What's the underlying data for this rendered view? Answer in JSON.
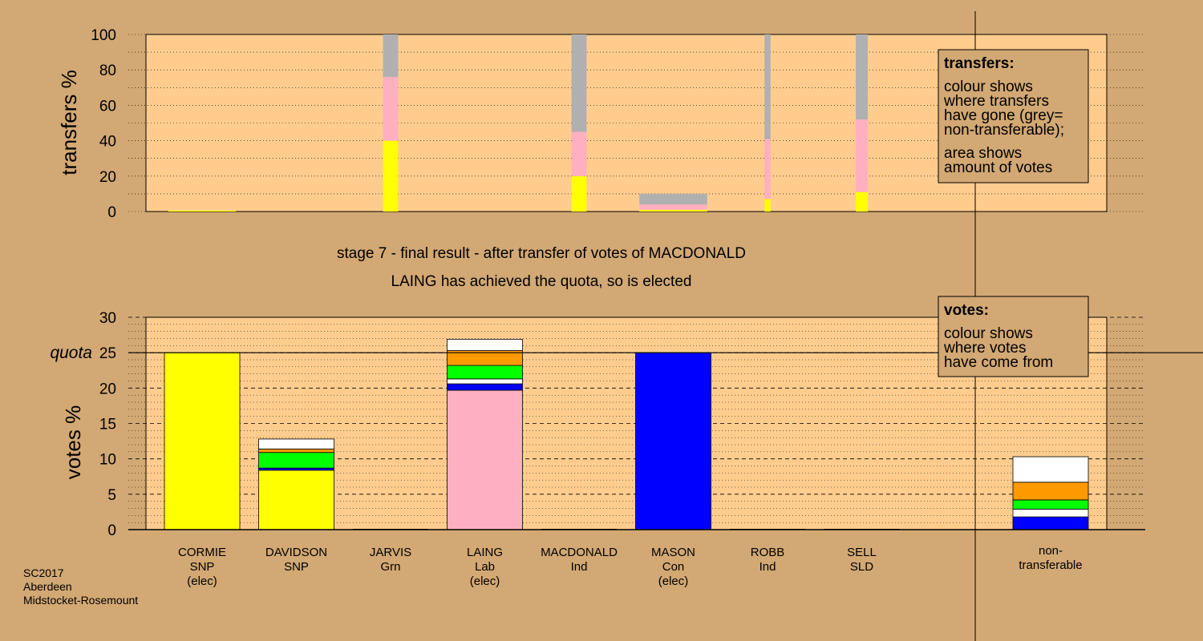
{
  "colors": {
    "background": "#d2a874",
    "plot_area": "#ffcc8e",
    "legend_box": "#d2a874",
    "SNP": "#ffff00",
    "Con": "#0000ff",
    "Lab": "#ffb0c0",
    "Grn": "#00ff00",
    "Ind": "#ff9900",
    "SLD": "#ffffff",
    "NT": "#b0b0b0"
  },
  "header": {
    "stage_text": "stage 7 - final result - after transfer of votes of MACDONALD",
    "result_text": "LAING has achieved the quota, so is elected"
  },
  "footer": {
    "line1": "SC2017",
    "line2": "Aberdeen",
    "line3": "Midstocket-Rosemount"
  },
  "legend_transfers": {
    "title": "transfers:",
    "line1": "colour shows",
    "line2": "where transfers",
    "line3": "have gone (grey=",
    "line4": "non-transferable);",
    "line5": "area shows",
    "line6": "amount of votes"
  },
  "legend_votes": {
    "title": "votes:",
    "line1": "colour shows",
    "line2": "where votes",
    "line3": "have come from"
  },
  "chart_data": [
    {
      "type": "bar",
      "stacked": true,
      "ylabel": "transfers %",
      "ylim": [
        0,
        100
      ],
      "yticks": [
        0,
        20,
        40,
        60,
        80,
        100
      ],
      "bars": [
        {
          "candidate": "CORMIE",
          "width_share": 0.9,
          "segments": [
            {
              "color": "SNP",
              "value": 0.3
            }
          ]
        },
        {
          "candidate": "JARVIS",
          "width_share": 0.2,
          "segments": [
            {
              "color": "SNP",
              "value": 40
            },
            {
              "color": "Lab",
              "value": 36
            },
            {
              "color": "NT",
              "value": 24
            }
          ]
        },
        {
          "candidate": "MACDONALD",
          "width_share": 0.2,
          "segments": [
            {
              "color": "SNP",
              "value": 20
            },
            {
              "color": "Lab",
              "value": 25
            },
            {
              "color": "NT",
              "value": 55
            }
          ]
        },
        {
          "candidate": "MASON",
          "width_share": 0.9,
          "segments": [
            {
              "color": "SNP",
              "value": 1
            },
            {
              "color": "Lab",
              "value": 3
            },
            {
              "color": "NT",
              "value": 6
            }
          ]
        },
        {
          "candidate": "ROBB",
          "width_share": 0.08,
          "segments": [
            {
              "color": "SNP",
              "value": 7
            },
            {
              "color": "Lab",
              "value": 34
            },
            {
              "color": "NT",
              "value": 59
            }
          ]
        },
        {
          "candidate": "SELL",
          "width_share": 0.16,
          "segments": [
            {
              "color": "SNP",
              "value": 11
            },
            {
              "color": "Lab",
              "value": 41
            },
            {
              "color": "NT",
              "value": 48
            }
          ]
        }
      ]
    },
    {
      "type": "bar",
      "stacked": true,
      "ylabel": "votes %",
      "ylim": [
        0,
        30
      ],
      "yticks": [
        0,
        5,
        10,
        15,
        20,
        25,
        30
      ],
      "quota": 25,
      "quota_label": "quota",
      "categories": [
        {
          "name": "CORMIE",
          "party": "SNP",
          "status": "(elec)"
        },
        {
          "name": "DAVIDSON",
          "party": "SNP",
          "status": ""
        },
        {
          "name": "JARVIS",
          "party": "Grn",
          "status": ""
        },
        {
          "name": "LAING",
          "party": "Lab",
          "status": "(elec)"
        },
        {
          "name": "MACDONALD",
          "party": "Ind",
          "status": ""
        },
        {
          "name": "MASON",
          "party": "Con",
          "status": "(elec)"
        },
        {
          "name": "ROBB",
          "party": "Ind",
          "status": ""
        },
        {
          "name": "SELL",
          "party": "SLD",
          "status": ""
        }
      ],
      "nontransferable_label": [
        "non-",
        "transferable"
      ],
      "bars": [
        {
          "candidate": "CORMIE",
          "segments": [
            {
              "color": "SNP",
              "value": 25
            }
          ]
        },
        {
          "candidate": "DAVIDSON",
          "segments": [
            {
              "color": "SNP",
              "value": 8.4
            },
            {
              "color": "Con",
              "value": 0.3
            },
            {
              "color": "Grn",
              "value": 2.2
            },
            {
              "color": "Ind",
              "value": 0.5
            },
            {
              "color": "SLD",
              "value": 1.4
            }
          ]
        },
        {
          "candidate": "JARVIS",
          "segments": [
            {
              "color": "Grn",
              "value": 0
            }
          ]
        },
        {
          "candidate": "LAING",
          "segments": [
            {
              "color": "Lab",
              "value": 19.7
            },
            {
              "color": "Con",
              "value": 0.9
            },
            {
              "color": "SLD",
              "value": 0.7
            },
            {
              "color": "Grn",
              "value": 1.9
            },
            {
              "color": "Ind",
              "value": 2.1
            },
            {
              "color": "SLD",
              "value": 1.6
            }
          ]
        },
        {
          "candidate": "MACDONALD",
          "segments": [
            {
              "color": "Ind",
              "value": 0
            }
          ]
        },
        {
          "candidate": "MASON",
          "segments": [
            {
              "color": "Con",
              "value": 25
            }
          ]
        },
        {
          "candidate": "ROBB",
          "segments": [
            {
              "color": "Ind",
              "value": 0
            }
          ]
        },
        {
          "candidate": "SELL",
          "segments": [
            {
              "color": "SLD",
              "value": 0
            }
          ]
        },
        {
          "candidate": "non-transferable",
          "segments": [
            {
              "color": "Con",
              "value": 1.8
            },
            {
              "color": "SLD",
              "value": 1.1
            },
            {
              "color": "Grn",
              "value": 1.3
            },
            {
              "color": "Ind",
              "value": 2.5
            },
            {
              "color": "SLD",
              "value": 3.6
            }
          ]
        }
      ]
    }
  ]
}
